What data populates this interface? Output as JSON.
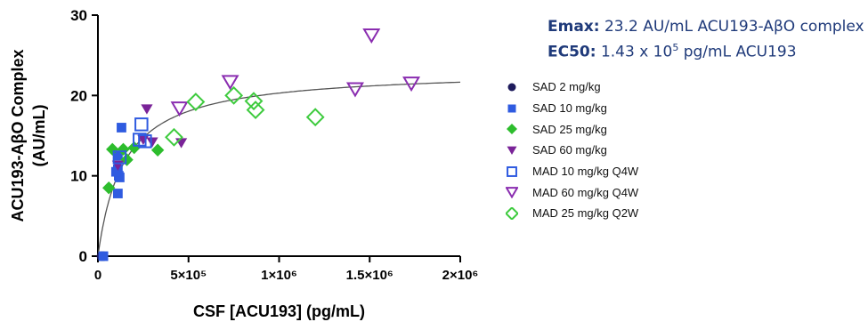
{
  "fit_info": {
    "emax_label": "Emax:",
    "emax_value": "23.2 AU/mL ACU193-AβO complex",
    "ec50_label": "EC50:",
    "ec50_value_base": "1.43 x 10",
    "ec50_value_exp": "5",
    "ec50_value_unit": "pg/mL ACU193"
  },
  "chart_data": {
    "type": "scatter",
    "xlabel": "CSF [ACU193] (pg/mL)",
    "ylabel": "ACU193-AβO Complex (AU/mL)",
    "xlim": [
      0,
      2000000
    ],
    "ylim": [
      0,
      30
    ],
    "x_ticks": [
      {
        "value": 0,
        "label": "0"
      },
      {
        "value": 500000,
        "label": "5×10⁵"
      },
      {
        "value": 1000000,
        "label": "1×10⁶"
      },
      {
        "value": 1500000,
        "label": "1.5×10⁶"
      },
      {
        "value": 2000000,
        "label": "2×10⁶"
      }
    ],
    "y_ticks": [
      {
        "value": 0,
        "label": "0"
      },
      {
        "value": 10,
        "label": "10"
      },
      {
        "value": 20,
        "label": "20"
      },
      {
        "value": 30,
        "label": "30"
      }
    ],
    "fit_curve": {
      "emax": 23.2,
      "ec50": 143000,
      "color": "#555555"
    },
    "legend_position": "right",
    "series": [
      {
        "name": "SAD 2 mg/kg",
        "marker": "circle-filled",
        "color": "#1e1b5c",
        "points": [
          [
            20000,
            0
          ],
          [
            30000,
            0
          ]
        ]
      },
      {
        "name": "SAD 10 mg/kg",
        "marker": "square-filled",
        "color": "#2f5be0",
        "points": [
          [
            130000,
            16
          ],
          [
            110000,
            12.5
          ],
          [
            110000,
            10.8
          ],
          [
            115000,
            10
          ],
          [
            120000,
            9.8
          ],
          [
            110000,
            7.8
          ],
          [
            100000,
            10.5
          ],
          [
            30000,
            0
          ]
        ]
      },
      {
        "name": "SAD 25 mg/kg",
        "marker": "diamond-filled",
        "color": "#2dbd2d",
        "points": [
          [
            60000,
            8.5
          ],
          [
            80000,
            13.3
          ],
          [
            140000,
            13.3
          ],
          [
            160000,
            12
          ],
          [
            200000,
            13.5
          ],
          [
            330000,
            13.2
          ]
        ]
      },
      {
        "name": "SAD 60 mg/kg",
        "marker": "triangle-down-filled",
        "color": "#7a2398",
        "points": [
          [
            110000,
            11.3
          ],
          [
            270000,
            18.3
          ],
          [
            250000,
            14.5
          ],
          [
            300000,
            14.2
          ],
          [
            460000,
            14.1
          ]
        ]
      },
      {
        "name": "MAD 10 mg/kg Q4W",
        "marker": "square-open",
        "color": "#2f5be0",
        "points": [
          [
            240000,
            16.4
          ],
          [
            230000,
            14.5
          ],
          [
            260000,
            14.3
          ],
          [
            120000,
            12.3
          ]
        ]
      },
      {
        "name": "MAD 60 mg/kg Q4W",
        "marker": "triangle-down-open",
        "color": "#8a2db0",
        "points": [
          [
            450000,
            18.4
          ],
          [
            730000,
            21.7
          ],
          [
            1420000,
            20.8
          ],
          [
            1510000,
            27.5
          ],
          [
            1730000,
            21.5
          ]
        ]
      },
      {
        "name": "MAD 25 mg/kg Q2W",
        "marker": "diamond-open",
        "color": "#3ecb3e",
        "points": [
          [
            420000,
            14.8
          ],
          [
            540000,
            19.2
          ],
          [
            750000,
            20
          ],
          [
            860000,
            19.3
          ],
          [
            870000,
            18.2
          ],
          [
            1200000,
            17.3
          ]
        ]
      }
    ]
  }
}
